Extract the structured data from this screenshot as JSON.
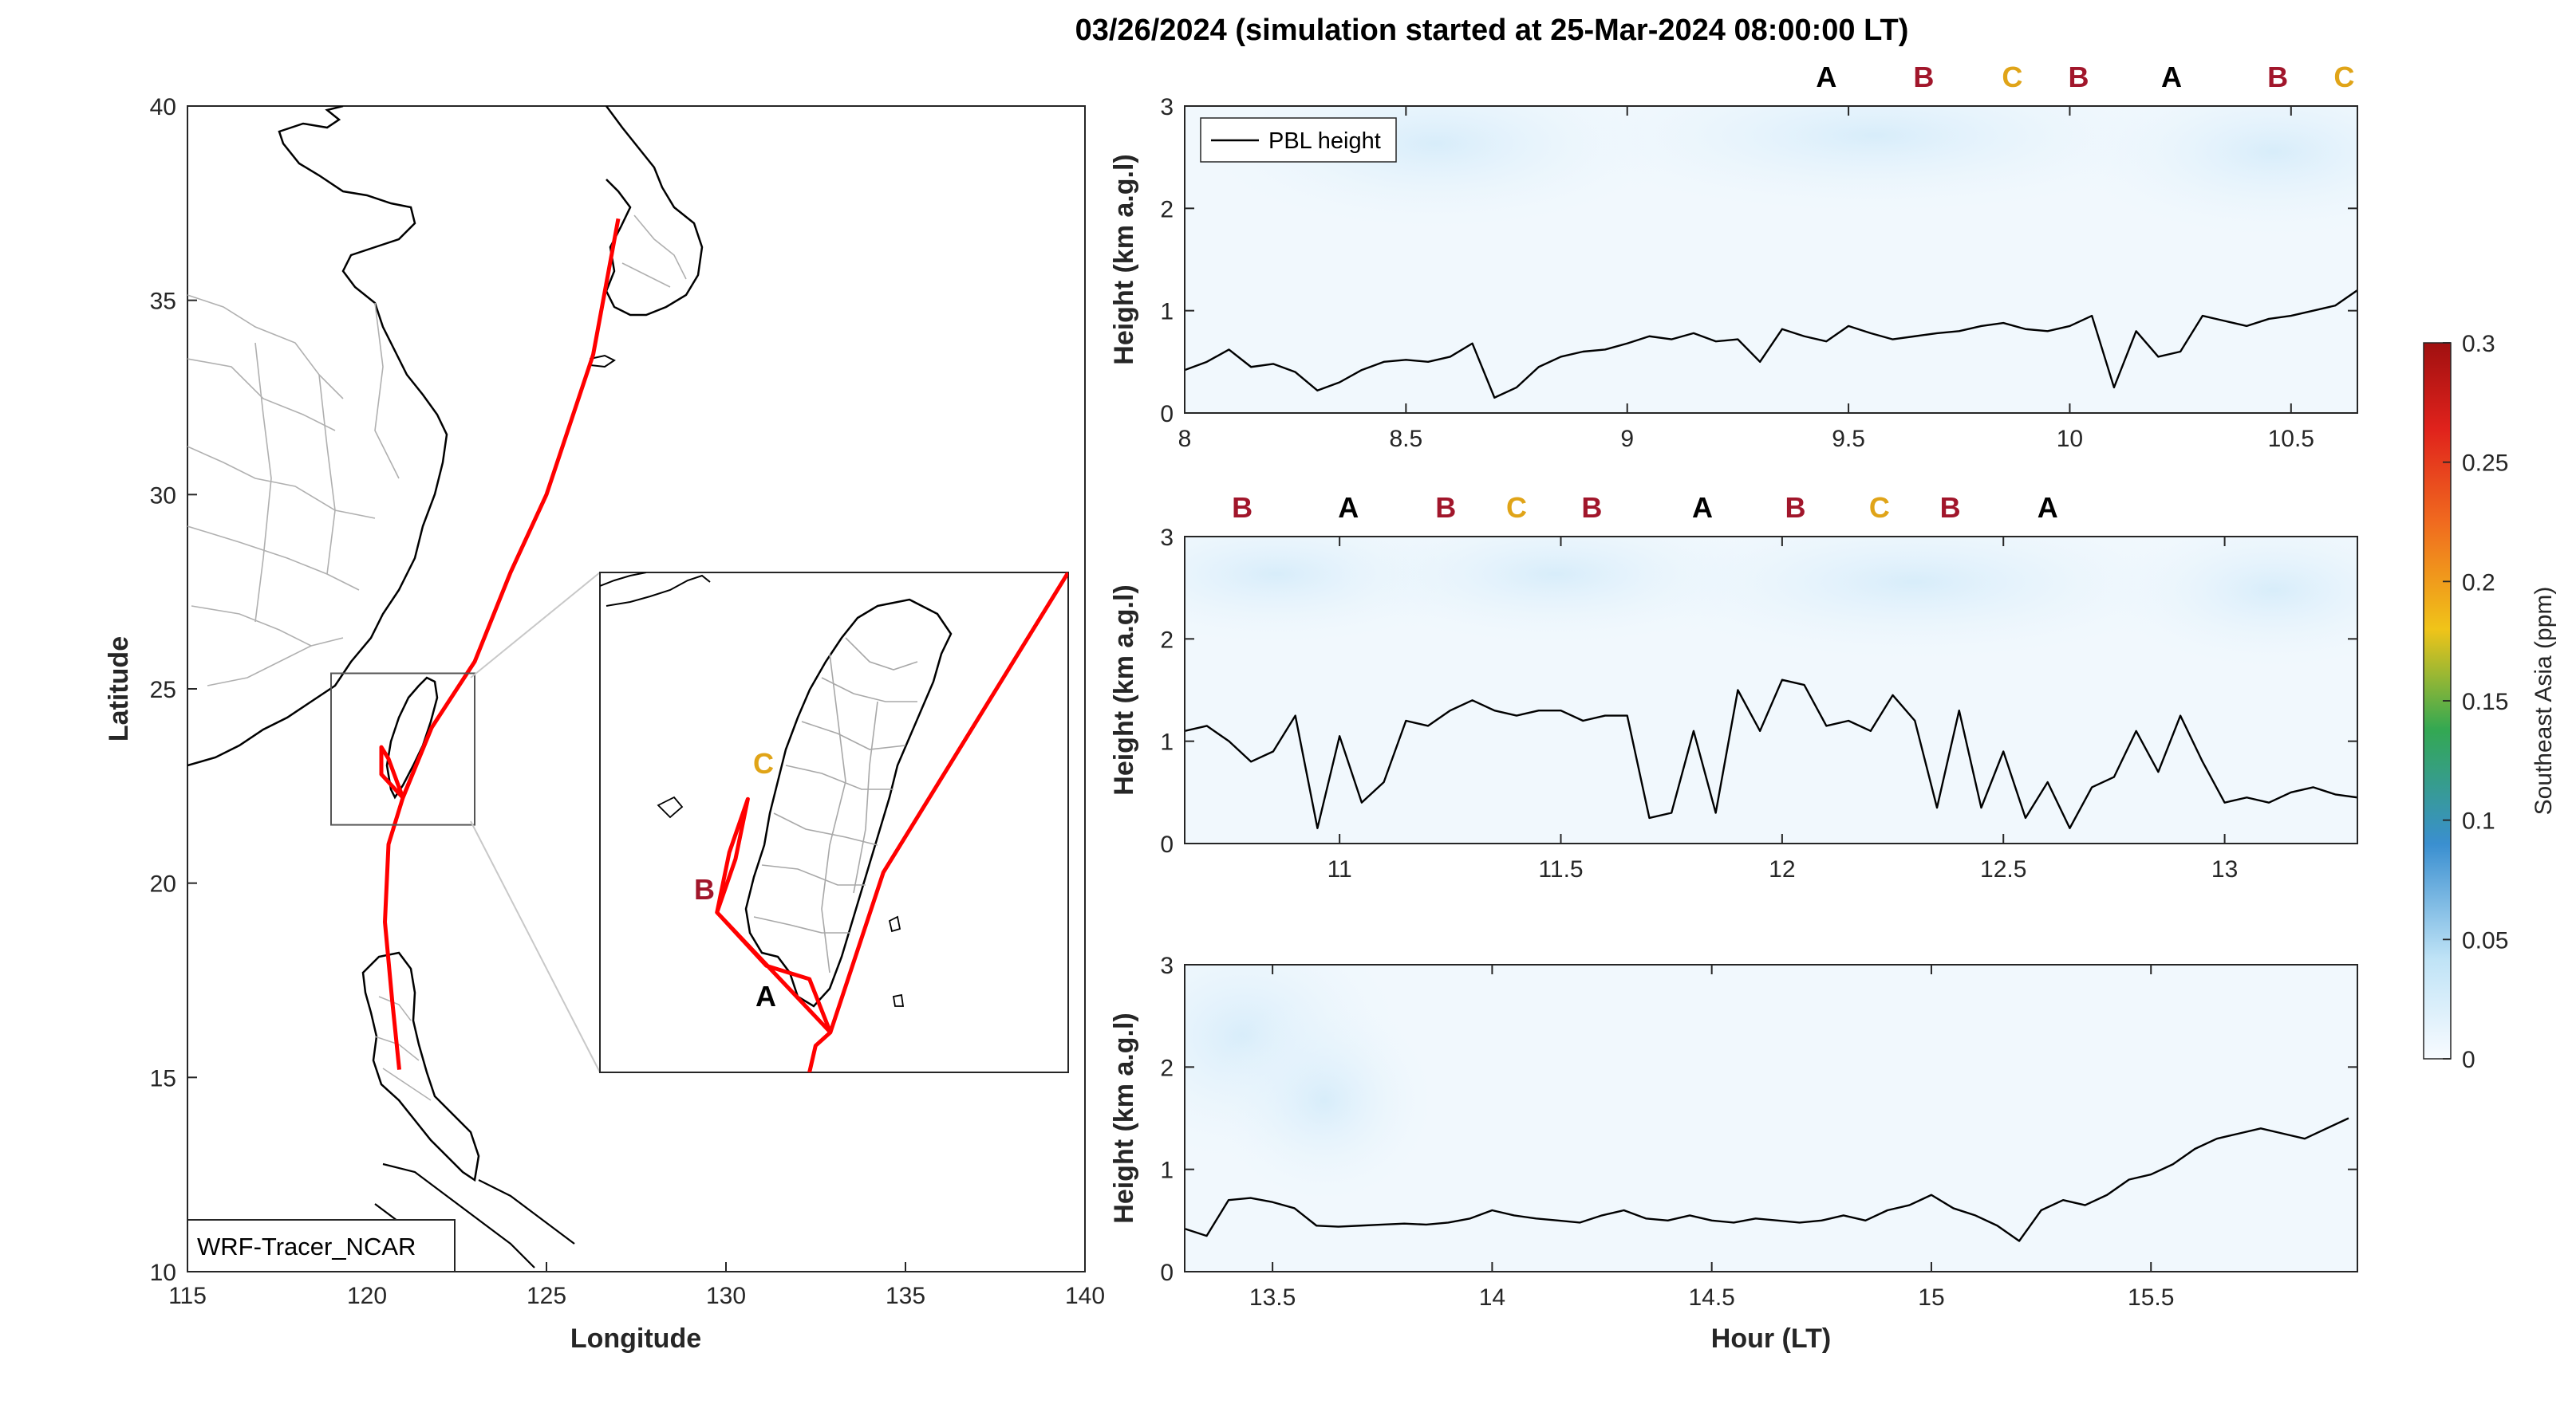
{
  "title": "03/26/2024 (simulation started at 25-Mar-2024 08:00:00 LT)",
  "colors": {
    "segment": {
      "A": "#000000",
      "B": "#a1162b",
      "C": "#e0a418"
    },
    "track": "#ff0000",
    "pbl": "#000000",
    "coast": "#000000",
    "border": "#b0b0b0"
  },
  "map": {
    "xlabel": "Longitude",
    "ylabel": "Latitude",
    "xlim": [
      115,
      140
    ],
    "ylim": [
      10,
      40
    ],
    "xticks": [
      "115",
      "120",
      "125",
      "130",
      "135",
      "140"
    ],
    "yticks": [
      "10",
      "15",
      "20",
      "25",
      "30",
      "35",
      "40"
    ],
    "model_label": "WRF-Tracer_NCAR",
    "track": [
      [
        127.0,
        37.1
      ],
      [
        126.3,
        33.6
      ],
      [
        125.0,
        30.0
      ],
      [
        124.0,
        28.0
      ],
      [
        123.0,
        25.7
      ],
      [
        121.8,
        24.0
      ],
      [
        121.0,
        22.2
      ],
      [
        120.6,
        21.0
      ],
      [
        120.5,
        19.0
      ],
      [
        120.7,
        17.0
      ],
      [
        120.9,
        15.2
      ]
    ],
    "taiwan_loop": [
      [
        121.8,
        24.0
      ],
      [
        121.0,
        22.2
      ],
      [
        120.4,
        22.8
      ],
      [
        120.4,
        23.5
      ],
      [
        120.6,
        23.2
      ],
      [
        121.0,
        22.2
      ]
    ],
    "inset_box": [
      119.0,
      21.5,
      123.0,
      25.4
    ],
    "inset": {
      "lon": [
        119.2,
        123.0
      ],
      "lat": [
        21.8,
        25.55
      ],
      "track": [
        [
          123.0,
          25.55
        ],
        [
          121.5,
          23.3
        ],
        [
          121.07,
          22.1
        ],
        [
          120.95,
          22.0
        ],
        [
          120.9,
          21.8
        ]
      ],
      "loop": [
        [
          121.07,
          22.1
        ],
        [
          120.15,
          23.0
        ],
        [
          120.25,
          23.45
        ],
        [
          120.4,
          23.85
        ],
        [
          120.3,
          23.4
        ],
        [
          120.15,
          23.0
        ],
        [
          120.55,
          22.6
        ],
        [
          120.9,
          22.5
        ],
        [
          121.07,
          22.1
        ]
      ],
      "labels": [
        {
          "text": "C",
          "seg": "C"
        },
        {
          "text": "B",
          "seg": "B"
        },
        {
          "text": "A",
          "seg": "A"
        }
      ]
    }
  },
  "timeseries": {
    "ylabel": "Height (km a.g.l)",
    "xlabel": "Hour (LT)",
    "legend": "PBL height",
    "ylim": [
      0,
      3
    ],
    "yticks": [
      "0",
      "1",
      "2",
      "3"
    ],
    "panels": [
      {
        "xlim": [
          8,
          10.65
        ],
        "xticks": [
          "8",
          "8.5",
          "9",
          "9.5",
          "10",
          "10.5"
        ],
        "segments": [
          {
            "x": 9.45,
            "label": "A"
          },
          {
            "x": 9.67,
            "label": "B"
          },
          {
            "x": 9.87,
            "label": "C"
          },
          {
            "x": 10.02,
            "label": "B"
          },
          {
            "x": 10.23,
            "label": "A"
          },
          {
            "x": 10.47,
            "label": "B"
          },
          {
            "x": 10.62,
            "label": "C"
          }
        ]
      },
      {
        "xlim": [
          10.65,
          13.3
        ],
        "xticks": [
          "11",
          "11.5",
          "12",
          "12.5",
          "13"
        ],
        "segments": [
          {
            "x": 10.78,
            "label": "B"
          },
          {
            "x": 11.02,
            "label": "A"
          },
          {
            "x": 11.24,
            "label": "B"
          },
          {
            "x": 11.4,
            "label": "C"
          },
          {
            "x": 11.57,
            "label": "B"
          },
          {
            "x": 11.82,
            "label": "A"
          },
          {
            "x": 12.03,
            "label": "B"
          },
          {
            "x": 12.22,
            "label": "C"
          },
          {
            "x": 12.38,
            "label": "B"
          },
          {
            "x": 12.6,
            "label": "A"
          }
        ]
      },
      {
        "xlim": [
          13.3,
          15.97
        ],
        "xticks": [
          "13.5",
          "14",
          "14.5",
          "15",
          "15.5"
        ],
        "segments": []
      }
    ]
  },
  "chart_data": [
    {
      "type": "line",
      "series": [
        {
          "name": "PBL height",
          "x": [
            8.0,
            8.05,
            8.1,
            8.15,
            8.2,
            8.25,
            8.3,
            8.35,
            8.4,
            8.45,
            8.5,
            8.55,
            8.6,
            8.65,
            8.7,
            8.75,
            8.8,
            8.85,
            8.9,
            8.95,
            9.0,
            9.05,
            9.1,
            9.15,
            9.2,
            9.25,
            9.3,
            9.35,
            9.4,
            9.45,
            9.5,
            9.55,
            9.6,
            9.65,
            9.7,
            9.75,
            9.8,
            9.85,
            9.9,
            9.95,
            10.0,
            10.05,
            10.1,
            10.15,
            10.2,
            10.25,
            10.3,
            10.35,
            10.4,
            10.45,
            10.5,
            10.55,
            10.6,
            10.65
          ],
          "y": [
            0.42,
            0.5,
            0.62,
            0.45,
            0.48,
            0.4,
            0.22,
            0.3,
            0.42,
            0.5,
            0.52,
            0.5,
            0.55,
            0.68,
            0.15,
            0.25,
            0.45,
            0.55,
            0.6,
            0.62,
            0.68,
            0.75,
            0.72,
            0.78,
            0.7,
            0.72,
            0.5,
            0.82,
            0.75,
            0.7,
            0.85,
            0.78,
            0.72,
            0.75,
            0.78,
            0.8,
            0.85,
            0.88,
            0.82,
            0.8,
            0.85,
            0.95,
            0.25,
            0.8,
            0.55,
            0.6,
            0.95,
            0.9,
            0.85,
            0.92,
            0.95,
            1.0,
            1.05,
            1.2
          ]
        }
      ],
      "xlabel": "",
      "ylabel": "Height (km a.g.l)",
      "xlim": [
        8,
        10.65
      ],
      "ylim": [
        0,
        3
      ]
    },
    {
      "type": "line",
      "series": [
        {
          "name": "PBL height",
          "x": [
            10.65,
            10.7,
            10.75,
            10.8,
            10.85,
            10.9,
            10.95,
            11.0,
            11.05,
            11.1,
            11.15,
            11.2,
            11.25,
            11.3,
            11.35,
            11.4,
            11.45,
            11.5,
            11.55,
            11.6,
            11.65,
            11.7,
            11.75,
            11.8,
            11.85,
            11.9,
            11.95,
            12.0,
            12.05,
            12.1,
            12.15,
            12.2,
            12.25,
            12.3,
            12.35,
            12.4,
            12.45,
            12.5,
            12.55,
            12.6,
            12.65,
            12.7,
            12.75,
            12.8,
            12.85,
            12.9,
            12.95,
            13.0,
            13.05,
            13.1,
            13.15,
            13.2,
            13.25,
            13.3
          ],
          "y": [
            1.1,
            1.15,
            1.0,
            0.8,
            0.9,
            1.25,
            0.15,
            1.05,
            0.4,
            0.6,
            1.2,
            1.15,
            1.3,
            1.4,
            1.3,
            1.25,
            1.3,
            1.3,
            1.2,
            1.25,
            1.25,
            0.25,
            0.3,
            1.1,
            0.3,
            1.5,
            1.1,
            1.6,
            1.55,
            1.15,
            1.2,
            1.1,
            1.45,
            1.2,
            0.35,
            1.3,
            0.35,
            0.9,
            0.25,
            0.6,
            0.15,
            0.55,
            0.65,
            1.1,
            0.7,
            1.25,
            0.8,
            0.4,
            0.45,
            0.4,
            0.5,
            0.55,
            0.48,
            0.45
          ]
        }
      ],
      "xlabel": "",
      "ylabel": "Height (km a.g.l)",
      "xlim": [
        10.65,
        13.3
      ],
      "ylim": [
        0,
        3
      ]
    },
    {
      "type": "line",
      "series": [
        {
          "name": "PBL height",
          "x": [
            13.3,
            13.35,
            13.4,
            13.45,
            13.5,
            13.55,
            13.6,
            13.65,
            13.7,
            13.75,
            13.8,
            13.85,
            13.9,
            13.95,
            14.0,
            14.05,
            14.1,
            14.15,
            14.2,
            14.25,
            14.3,
            14.35,
            14.4,
            14.45,
            14.5,
            14.55,
            14.6,
            14.65,
            14.7,
            14.75,
            14.8,
            14.85,
            14.9,
            14.95,
            15.0,
            15.05,
            15.1,
            15.15,
            15.2,
            15.25,
            15.3,
            15.35,
            15.4,
            15.45,
            15.5,
            15.55,
            15.6,
            15.65,
            15.7,
            15.75,
            15.8,
            15.85,
            15.9,
            15.95
          ],
          "y": [
            0.42,
            0.35,
            0.7,
            0.72,
            0.68,
            0.62,
            0.45,
            0.44,
            0.45,
            0.46,
            0.47,
            0.46,
            0.48,
            0.52,
            0.6,
            0.55,
            0.52,
            0.5,
            0.48,
            0.55,
            0.6,
            0.52,
            0.5,
            0.55,
            0.5,
            0.48,
            0.52,
            0.5,
            0.48,
            0.5,
            0.55,
            0.5,
            0.6,
            0.65,
            0.75,
            0.62,
            0.55,
            0.45,
            0.3,
            0.6,
            0.7,
            0.65,
            0.75,
            0.9,
            0.95,
            1.05,
            1.2,
            1.3,
            1.35,
            1.4,
            1.35,
            1.3,
            1.4,
            1.5
          ]
        }
      ],
      "xlabel": "Hour (LT)",
      "ylabel": "Height (km a.g.l)",
      "xlim": [
        13.3,
        15.97
      ],
      "ylim": [
        0,
        3
      ]
    }
  ],
  "colorbar": {
    "label": "Southeast Asia (ppm)",
    "ticks": [
      "0",
      "0.05",
      "0.1",
      "0.15",
      "0.2",
      "0.25",
      "0.3"
    ],
    "range": [
      0,
      0.3
    ],
    "colors": [
      "#f8fbff",
      "#bfe3f6",
      "#3a8fd0",
      "#33a852",
      "#f0c419",
      "#f06a1f",
      "#e0221c",
      "#a01010"
    ]
  }
}
